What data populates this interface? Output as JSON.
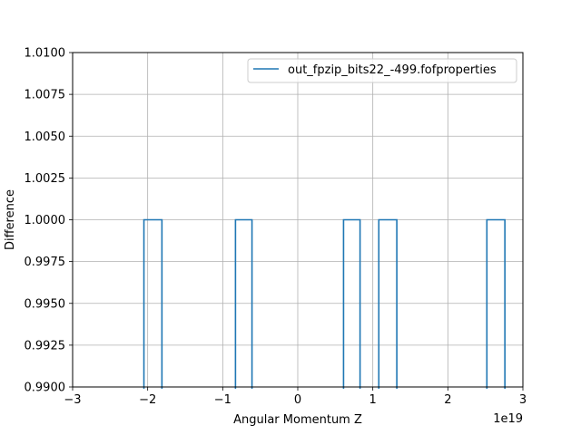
{
  "chart_data": {
    "type": "line",
    "drawstyle": "steps",
    "title": "",
    "xlabel": "Angular Momentum Z",
    "ylabel": "Difference",
    "x_offset_label": "1e19",
    "xlim": [
      -3,
      3
    ],
    "ylim": [
      0.99,
      1.01
    ],
    "xticks": [
      -3,
      -2,
      -1,
      0,
      1,
      2,
      3
    ],
    "xtick_labels": [
      "−3",
      "−2",
      "−1",
      "0",
      "1",
      "2",
      "3"
    ],
    "yticks": [
      0.99,
      0.9925,
      0.995,
      0.9975,
      1.0,
      1.0025,
      1.005,
      1.0075,
      1.01
    ],
    "ytick_labels": [
      "0.9900",
      "0.9925",
      "0.9950",
      "0.9975",
      "1.0000",
      "1.0025",
      "1.0050",
      "1.0075",
      "1.0100"
    ],
    "grid": true,
    "legend_position": "top-right",
    "series": [
      {
        "name": "out_fpzip_bits22_-499.fofproperties",
        "color": "#1f77b4",
        "segments": [
          {
            "x0": -2.05,
            "x1": -1.81,
            "y": 1.0
          },
          {
            "x0": -0.83,
            "x1": -0.61,
            "y": 1.0
          },
          {
            "x0": 0.61,
            "x1": 0.83,
            "y": 1.0
          },
          {
            "x0": 1.08,
            "x1": 1.32,
            "y": 1.0
          },
          {
            "x0": 2.52,
            "x1": 2.76,
            "y": 1.0
          }
        ]
      }
    ]
  }
}
